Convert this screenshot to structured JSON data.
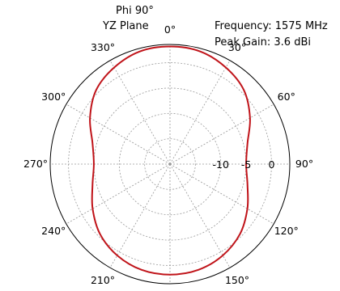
{
  "header": {
    "title_line1": "Phi  90°",
    "title_line2": "YZ Plane",
    "info_line1": "Frequency: 1575 MHz",
    "info_line2": "Peak Gain: 3.6 dBi"
  },
  "chart_data": {
    "type": "line",
    "projection": "polar",
    "title": "Phi  90° YZ Plane",
    "annotations": [
      "Frequency: 1575 MHz",
      "Peak Gain: 3.6 dBi"
    ],
    "angle_zero": "top",
    "angle_direction": "clockwise",
    "angle_ticks": [
      0,
      30,
      60,
      90,
      120,
      150,
      180,
      210,
      240,
      270,
      300,
      330
    ],
    "angle_tick_labels": [
      "0°",
      "30°",
      "60°",
      "90°",
      "120°",
      "150°",
      "180°",
      "210°",
      "240°",
      "270°",
      "300°",
      "330°"
    ],
    "radial_ticks": [
      -15,
      -10,
      -5,
      0
    ],
    "radial_tick_labels": [
      "-10",
      "-5",
      "0"
    ],
    "rlim": [
      -20,
      3.6
    ],
    "grid": true,
    "series": [
      {
        "color": "#c0141a",
        "theta": [
          0,
          15,
          30,
          45,
          60,
          75,
          90,
          105,
          120,
          135,
          150,
          165,
          180,
          195,
          210,
          225,
          240,
          255,
          270,
          285,
          300,
          315,
          330,
          345,
          360
        ],
        "r": [
          3.2,
          3.0,
          2.0,
          0.6,
          -1.8,
          -4.2,
          -5.0,
          -4.2,
          -2.4,
          -0.5,
          0.8,
          1.6,
          1.8,
          1.6,
          0.8,
          -0.5,
          -2.4,
          -4.2,
          -5.0,
          -4.2,
          -1.8,
          0.6,
          2.0,
          3.0,
          3.2
        ]
      }
    ]
  }
}
